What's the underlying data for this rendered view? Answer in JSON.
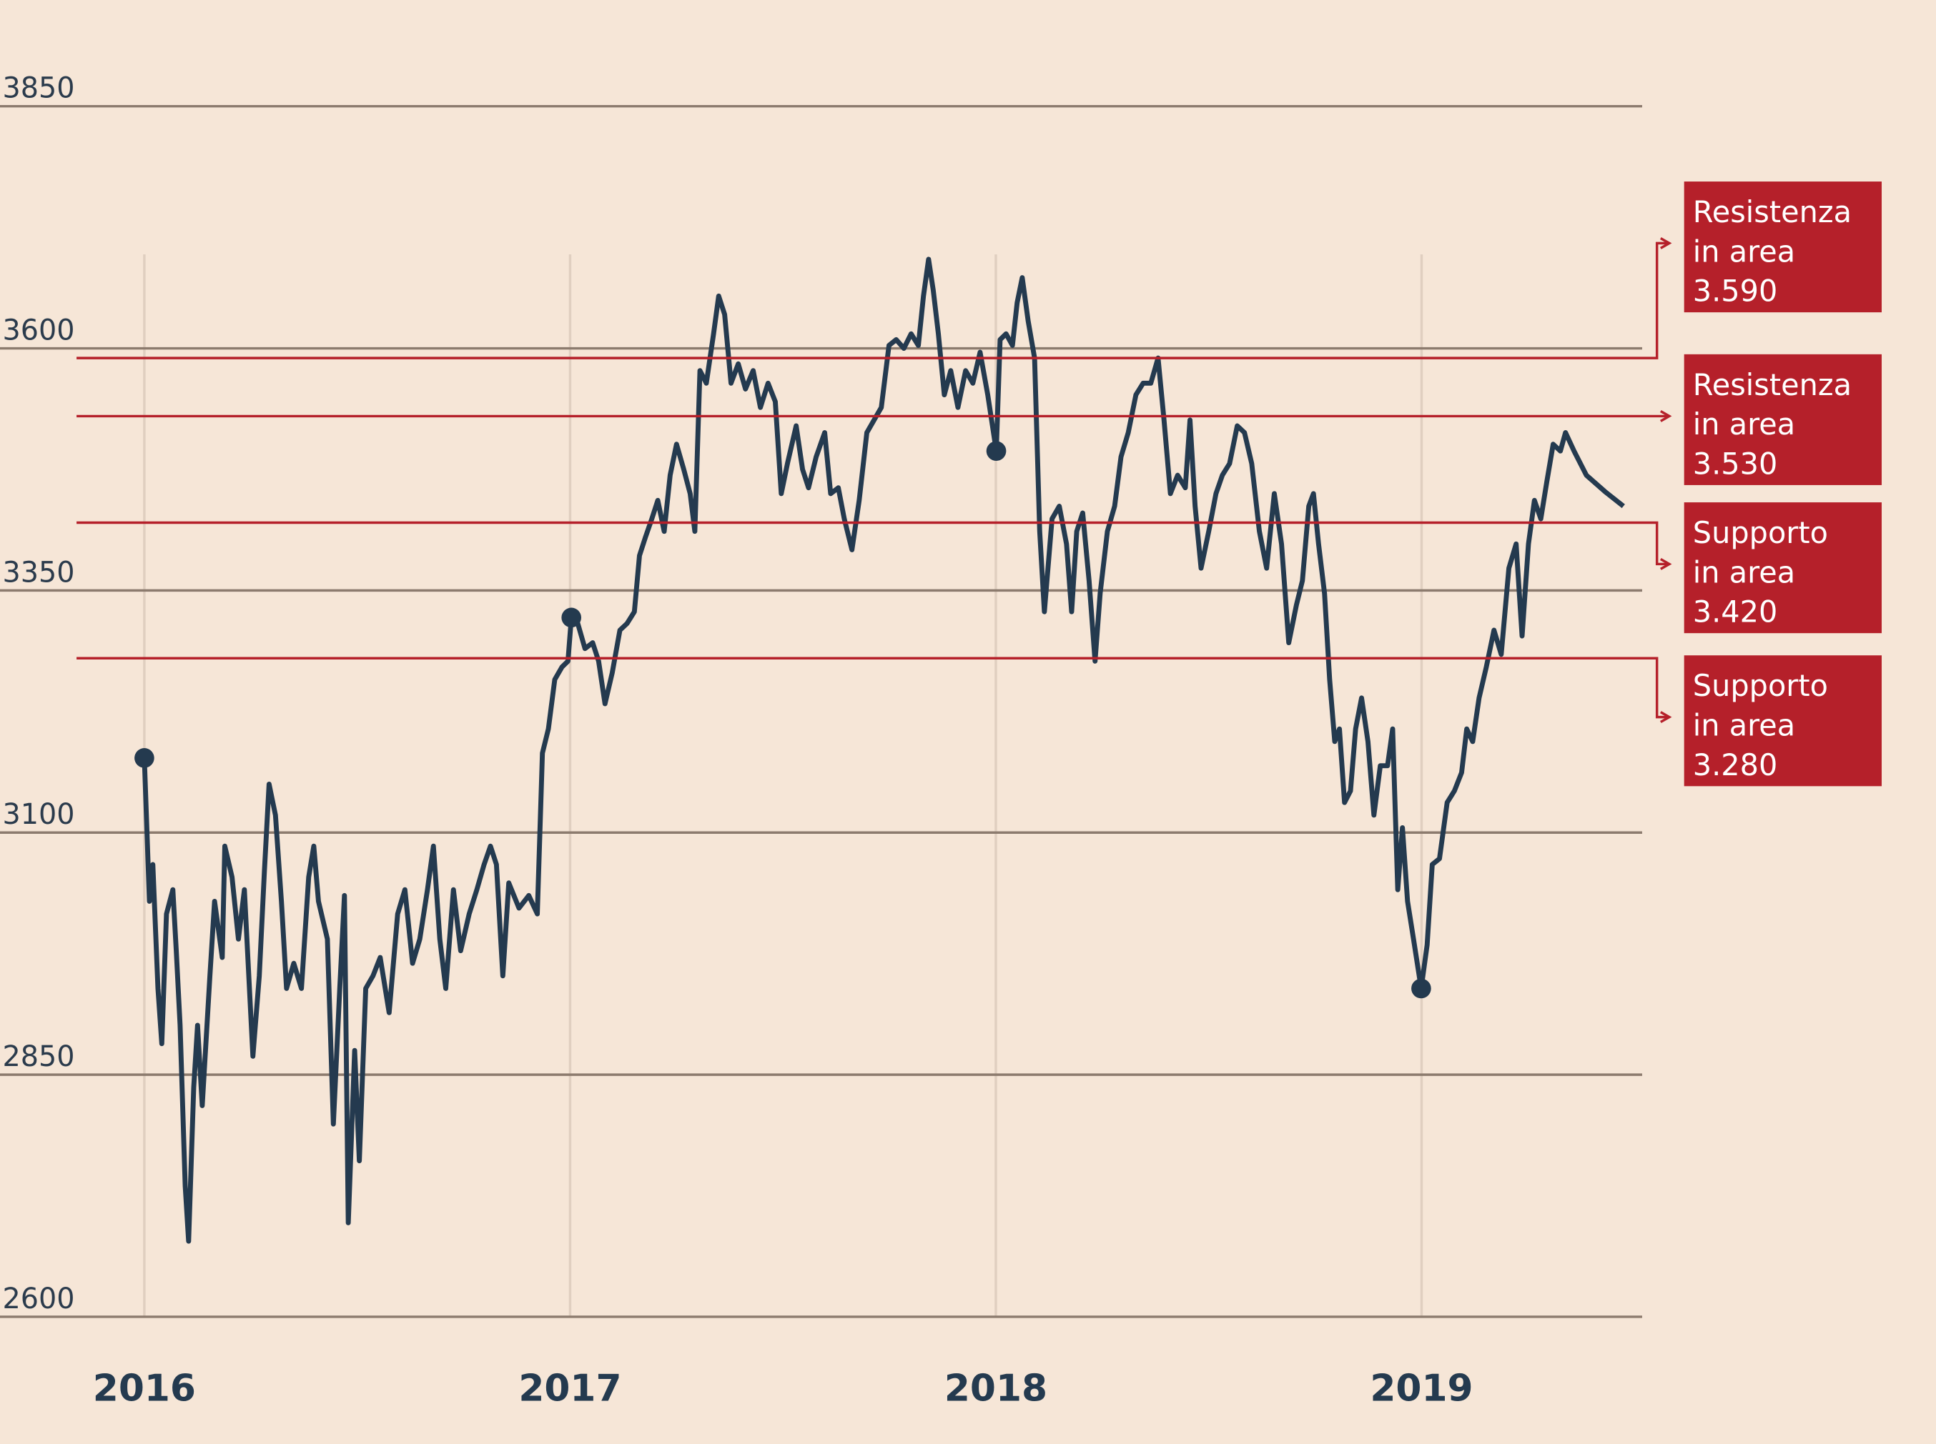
{
  "chart_data": {
    "type": "line",
    "ylim": [
      2600,
      3850
    ],
    "yticks": [
      2600,
      2850,
      3100,
      3350,
      3600,
      3850
    ],
    "xlim": [
      2015.661,
      2019.518
    ],
    "xticks": [
      2016,
      2017,
      2018,
      2019
    ],
    "grid": true,
    "series": [
      {
        "color": "#243a4f",
        "x": [
          2016.0,
          2016.012,
          2016.02,
          2016.032,
          2016.041,
          2016.052,
          2016.067,
          2016.075,
          2016.084,
          2016.096,
          2016.104,
          2016.116,
          2016.125,
          2016.136,
          2016.154,
          2016.165,
          2016.183,
          2016.189,
          2016.206,
          2016.221,
          2016.235,
          2016.255,
          2016.27,
          2016.282,
          2016.293,
          2016.308,
          2016.322,
          2016.334,
          2016.351,
          2016.369,
          2016.386,
          2016.398,
          2016.409,
          2016.43,
          2016.444,
          2016.459,
          2016.47,
          2016.479,
          2016.494,
          2016.505,
          2016.52,
          2016.537,
          2016.554,
          2016.575,
          2016.595,
          2016.612,
          2016.63,
          2016.647,
          2016.665,
          2016.679,
          2016.694,
          2016.708,
          2016.726,
          2016.743,
          2016.763,
          2016.781,
          2016.798,
          2016.813,
          2016.827,
          2016.842,
          2016.856,
          2016.88,
          2016.903,
          2016.923,
          2016.935,
          2016.949,
          2016.964,
          2016.981,
          2016.995,
          2017.003,
          2017.018,
          2017.035,
          2017.053,
          2017.067,
          2017.082,
          2017.099,
          2017.117,
          2017.134,
          2017.151,
          2017.163,
          2017.177,
          2017.192,
          2017.206,
          2017.221,
          2017.235,
          2017.25,
          2017.267,
          2017.282,
          2017.293,
          2017.305,
          2017.32,
          2017.337,
          2017.349,
          2017.363,
          2017.378,
          2017.395,
          2017.412,
          2017.43,
          2017.447,
          2017.465,
          2017.482,
          2017.496,
          2017.511,
          2017.531,
          2017.546,
          2017.56,
          2017.578,
          2017.598,
          2017.612,
          2017.63,
          2017.644,
          2017.662,
          2017.679,
          2017.697,
          2017.714,
          2017.731,
          2017.749,
          2017.766,
          2017.784,
          2017.801,
          2017.818,
          2017.83,
          2017.842,
          2017.853,
          2017.865,
          2017.879,
          2017.894,
          2017.911,
          2017.929,
          2017.946,
          2017.963,
          2017.981,
          2018.001,
          2018.01,
          2018.024,
          2018.039,
          2018.05,
          2018.062,
          2018.076,
          2018.091,
          2018.103,
          2018.114,
          2018.132,
          2018.149,
          2018.166,
          2018.178,
          2018.19,
          2018.204,
          2018.219,
          2018.233,
          2018.245,
          2018.262,
          2018.279,
          2018.294,
          2018.311,
          2018.329,
          2018.346,
          2018.364,
          2018.381,
          2018.395,
          2018.41,
          2018.427,
          2018.445,
          2018.456,
          2018.468,
          2018.482,
          2018.5,
          2018.517,
          2018.532,
          2018.549,
          2018.567,
          2018.584,
          2018.601,
          2018.619,
          2018.636,
          2018.654,
          2018.671,
          2018.688,
          2018.706,
          2018.72,
          2018.735,
          2018.746,
          2018.758,
          2018.772,
          2018.784,
          2018.796,
          2018.807,
          2018.819,
          2018.833,
          2018.845,
          2018.859,
          2018.874,
          2018.888,
          2018.903,
          2018.92,
          2018.932,
          2018.944,
          2018.955,
          2018.967,
          2018.981,
          2018.999,
          2019.013,
          2019.025,
          2019.042,
          2019.06,
          2019.077,
          2019.094,
          2019.106,
          2019.12,
          2019.135,
          2019.152,
          2019.17,
          2019.187,
          2019.205,
          2019.222,
          2019.236,
          2019.251,
          2019.265,
          2019.28,
          2019.294,
          2019.309,
          2019.326,
          2019.338,
          2019.358,
          2019.387,
          2019.431,
          2019.474
        ],
        "values": [
          3177,
          3029,
          3067,
          2939,
          2882,
          3016,
          3041,
          2978,
          2901,
          2735,
          2678,
          2837,
          2901,
          2818,
          2952,
          3029,
          2971,
          3086,
          3054,
          2990,
          3041,
          2869,
          2952,
          3060,
          3150,
          3118,
          3029,
          2939,
          2965,
          2939,
          3054,
          3086,
          3029,
          2990,
          2799,
          2939,
          3035,
          2697,
          2875,
          2761,
          2939,
          2952,
          2971,
          2914,
          3016,
          3041,
          2965,
          2990,
          3041,
          3086,
          2990,
          2939,
          3041,
          2978,
          3016,
          3041,
          3067,
          3086,
          3067,
          2952,
          3048,
          3022,
          3035,
          3016,
          3182,
          3207,
          3258,
          3271,
          3277,
          3322,
          3316,
          3290,
          3296,
          3277,
          3233,
          3265,
          3309,
          3316,
          3328,
          3386,
          3405,
          3424,
          3443,
          3411,
          3469,
          3501,
          3475,
          3450,
          3411,
          3577,
          3564,
          3615,
          3654,
          3635,
          3564,
          3584,
          3558,
          3577,
          3539,
          3564,
          3545,
          3450,
          3482,
          3520,
          3475,
          3456,
          3488,
          3513,
          3450,
          3456,
          3424,
          3392,
          3443,
          3513,
          3526,
          3539,
          3603,
          3609,
          3600,
          3615,
          3603,
          3654,
          3692,
          3660,
          3615,
          3552,
          3577,
          3539,
          3577,
          3564,
          3596,
          3552,
          3494,
          3609,
          3615,
          3603,
          3647,
          3673,
          3628,
          3590,
          3411,
          3328,
          3424,
          3437,
          3398,
          3328,
          3411,
          3430,
          3360,
          3277,
          3347,
          3411,
          3437,
          3488,
          3513,
          3552,
          3564,
          3564,
          3590,
          3526,
          3450,
          3469,
          3456,
          3526,
          3437,
          3373,
          3411,
          3450,
          3469,
          3481,
          3520,
          3513,
          3481,
          3411,
          3373,
          3450,
          3398,
          3296,
          3335,
          3360,
          3437,
          3450,
          3398,
          3347,
          3258,
          3194,
          3207,
          3131,
          3143,
          3207,
          3239,
          3194,
          3118,
          3169,
          3169,
          3207,
          3041,
          3105,
          3029,
          2990,
          2939,
          2984,
          3067,
          3073,
          3131,
          3143,
          3162,
          3207,
          3194,
          3239,
          3271,
          3309,
          3284,
          3373,
          3398,
          3303,
          3398,
          3443,
          3424,
          3462,
          3501,
          3494,
          3513,
          3494,
          3469,
          3452,
          3437
        ]
      }
    ],
    "levels": [
      {
        "value": 3590,
        "color": "#b5202a",
        "lines": [
          "Resistenza",
          "in area",
          "3.590"
        ]
      },
      {
        "value": 3530,
        "color": "#b5202a",
        "lines": [
          "Resistenza",
          "in area",
          "3.530"
        ]
      },
      {
        "value": 3420,
        "color": "#b5202a",
        "lines": [
          "Supporto",
          "in area",
          "3.420"
        ]
      },
      {
        "value": 3280,
        "color": "#b5202a",
        "lines": [
          "Supporto",
          "in area",
          "3.280"
        ]
      }
    ]
  }
}
